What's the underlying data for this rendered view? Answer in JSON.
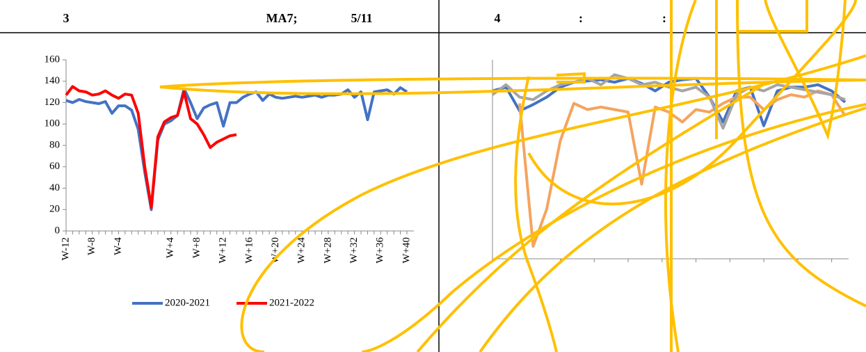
{
  "header": {
    "left": [
      "3",
      "MA7;",
      "5/11"
    ],
    "right": [
      "4",
      ":",
      ":"
    ]
  },
  "chart_data": [
    {
      "type": "line",
      "categories": [
        "W-12",
        null,
        null,
        null,
        "W-8",
        null,
        null,
        null,
        "W-4",
        null,
        null,
        null,
        null,
        null,
        null,
        null,
        "W+4",
        null,
        null,
        null,
        "W+8",
        null,
        null,
        null,
        "W+12",
        null,
        null,
        null,
        "W+16",
        null,
        null,
        null,
        "W+20",
        null,
        null,
        null,
        "W+24",
        null,
        null,
        null,
        "W+28",
        null,
        null,
        null,
        "W+32",
        null,
        null,
        null,
        "W+36",
        null,
        null,
        null,
        "W+40"
      ],
      "series": [
        {
          "name": "2020-2021",
          "color": "#4472c4",
          "values": [
            122,
            120,
            123,
            121,
            120,
            119,
            121,
            110,
            117,
            117,
            113,
            95,
            55,
            20,
            85,
            100,
            103,
            108,
            133,
            120,
            105,
            115,
            118,
            120,
            98,
            120,
            120,
            125,
            128,
            130,
            122,
            128,
            125,
            124,
            125,
            126,
            125,
            126,
            127,
            125,
            127,
            127,
            128,
            132,
            125,
            130,
            104,
            130,
            131,
            132,
            128,
            134,
            130
          ]
        },
        {
          "name": "2021-2022",
          "color": "#ff0000",
          "values": [
            127,
            135,
            131,
            130,
            127,
            128,
            131,
            127,
            124,
            128,
            127,
            110,
            60,
            22,
            88,
            102,
            106,
            108,
            130,
            105,
            100,
            90,
            78,
            83,
            86,
            89,
            90,
            null,
            null,
            null,
            null,
            null,
            null,
            null,
            null,
            null,
            null,
            null,
            null,
            null,
            null,
            null,
            null,
            null,
            null,
            null,
            null,
            null,
            null,
            null,
            null,
            null,
            null
          ]
        }
      ],
      "ylim": [
        0,
        160
      ],
      "yticks": [
        0,
        20,
        40,
        60,
        80,
        100,
        120,
        140,
        160
      ],
      "legend": "bottom"
    },
    {
      "type": "line",
      "series": [
        {
          "color": "#4472c4",
          "values": [
            135,
            138,
            119,
            124,
            130,
            138,
            142,
            143,
            144,
            142,
            145,
            141,
            135,
            142,
            144,
            145,
            130,
            110,
            135,
            138,
            107,
            135,
            138,
            138,
            140,
            135,
            126
          ]
        },
        {
          "color": "#f4a460",
          "values": [
            null,
            null,
            125,
            10,
            40,
            95,
            125,
            120,
            122,
            120,
            118,
            60,
            122,
            118,
            110,
            120,
            118,
            125,
            130,
            130,
            120,
            128,
            132,
            130,
            135,
            132,
            115
          ]
        },
        {
          "color": "#a5a5a5",
          "values": [
            132,
            140,
            130,
            128,
            135,
            140,
            142,
            145,
            140,
            148,
            145,
            140,
            142,
            138,
            135,
            138,
            130,
            105,
            132,
            138,
            135,
            140,
            138,
            136,
            134,
            132,
            128
          ]
        }
      ],
      "ylim": [
        0,
        160
      ]
    }
  ]
}
